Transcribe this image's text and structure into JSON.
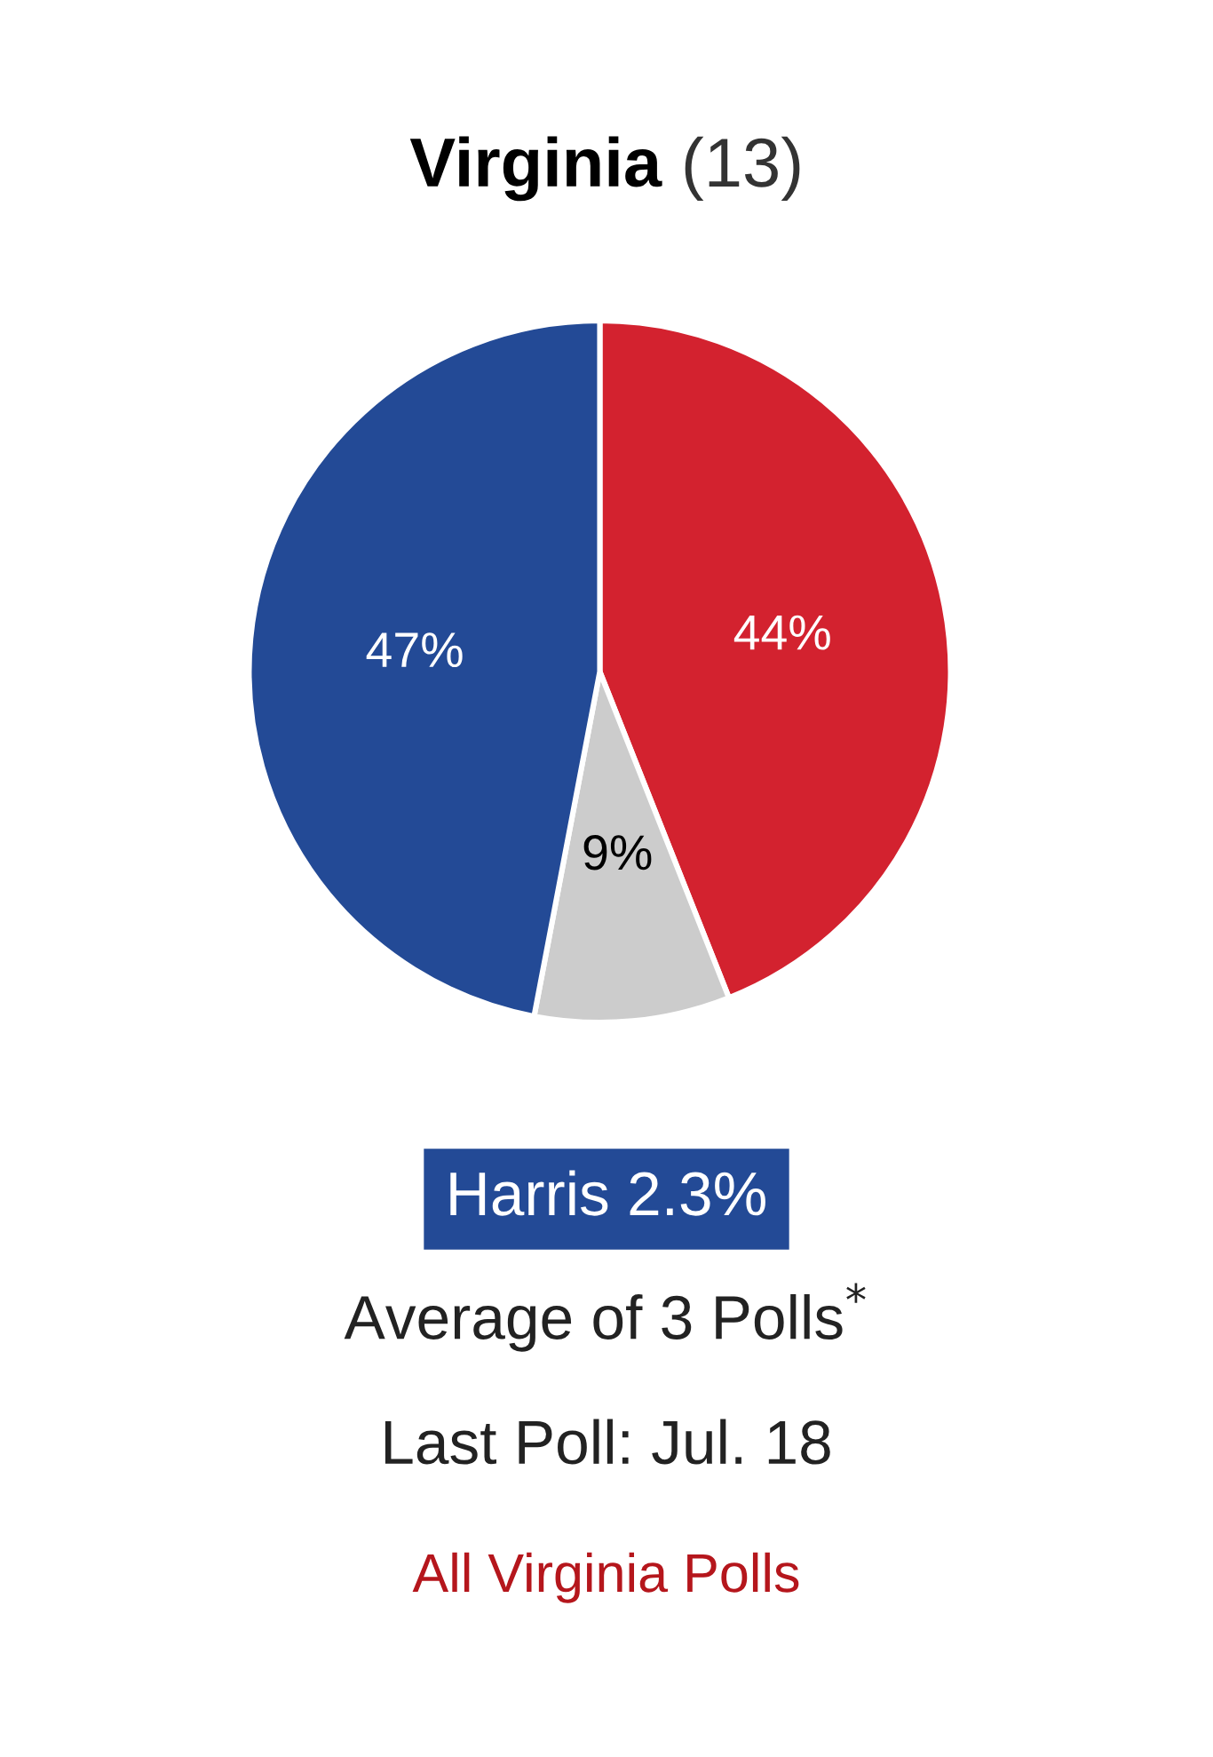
{
  "chart_data": {
    "type": "pie",
    "title": "Virginia",
    "subtitle": "(13)",
    "categories": [
      null,
      null,
      null
    ],
    "values": [
      44,
      9,
      47
    ],
    "colors": [
      "#d3222f",
      "#cccccc",
      "#234a96"
    ],
    "value_labels": [
      "44%",
      "9%",
      "47%"
    ],
    "annotations": [
      "Harris 2.3%",
      "Average of 3 Polls$^{*}$",
      "Last Poll: Jul. 18",
      "All Virginia Polls"
    ]
  }
}
